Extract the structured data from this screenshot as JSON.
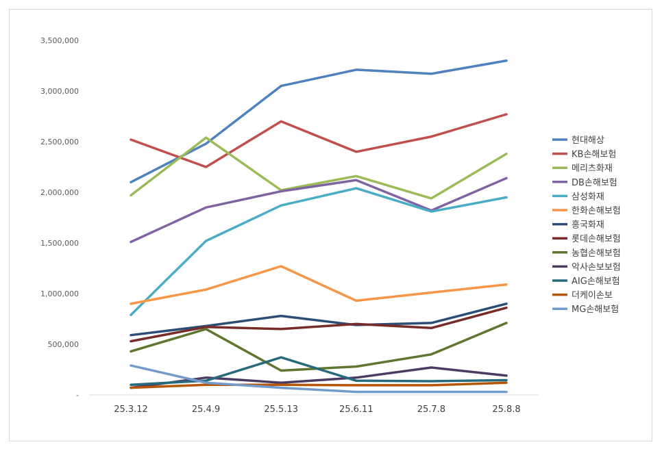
{
  "chart_data": {
    "type": "line",
    "categories": [
      "25.3.12",
      "25.4.9",
      "25.5.13",
      "25.6.11",
      "25.7.8",
      "25.8.8"
    ],
    "ylim": [
      0,
      3500000
    ],
    "yticks": [
      0,
      500000,
      1000000,
      1500000,
      2000000,
      2500000,
      3000000,
      3500000
    ],
    "ytick_labels": [
      "-",
      "500,000",
      "1,000,000",
      "1,500,000",
      "2,000,000",
      "2,500,000",
      "3,000,000",
      "3,500,000"
    ],
    "grid": false,
    "legend": "right",
    "series": [
      {
        "name": "현대해상",
        "color": "#4f81bd",
        "values": [
          2100000,
          2480000,
          3050000,
          3210000,
          3170000,
          3300000
        ]
      },
      {
        "name": "KB손해보험",
        "color": "#c0504d",
        "values": [
          2520000,
          2250000,
          2700000,
          2400000,
          2550000,
          2770000
        ]
      },
      {
        "name": "메리츠화재",
        "color": "#9bbb59",
        "values": [
          1970000,
          2540000,
          2020000,
          2160000,
          1940000,
          2380000
        ]
      },
      {
        "name": "DB손해보험",
        "color": "#8064a2",
        "values": [
          1510000,
          1850000,
          2010000,
          2120000,
          1820000,
          2140000
        ]
      },
      {
        "name": "삼성화재",
        "color": "#4bacc6",
        "values": [
          790000,
          1520000,
          1870000,
          2040000,
          1810000,
          1950000
        ]
      },
      {
        "name": "한화손해보험",
        "color": "#f79646",
        "values": [
          900000,
          1040000,
          1270000,
          930000,
          1010000,
          1090000
        ]
      },
      {
        "name": "흥국화재",
        "color": "#2c4d75",
        "values": [
          590000,
          680000,
          780000,
          690000,
          710000,
          900000
        ]
      },
      {
        "name": "롯데손해보험",
        "color": "#772c2a",
        "values": [
          530000,
          670000,
          650000,
          700000,
          660000,
          860000
        ]
      },
      {
        "name": "농협손해보험",
        "color": "#5f7530",
        "values": [
          430000,
          650000,
          240000,
          280000,
          400000,
          710000
        ]
      },
      {
        "name": "악사손보보험",
        "color": "#4d3b62",
        "values": [
          70000,
          170000,
          120000,
          170000,
          270000,
          190000
        ]
      },
      {
        "name": "AIG손해보험",
        "color": "#276a7c",
        "values": [
          100000,
          140000,
          370000,
          140000,
          135000,
          145000
        ]
      },
      {
        "name": "더케이손보",
        "color": "#b65708",
        "values": [
          70000,
          100000,
          100000,
          95000,
          95000,
          120000
        ]
      },
      {
        "name": "MG손해보험",
        "color": "#729aca",
        "values": [
          290000,
          120000,
          70000,
          30000,
          30000,
          30000
        ]
      }
    ]
  }
}
